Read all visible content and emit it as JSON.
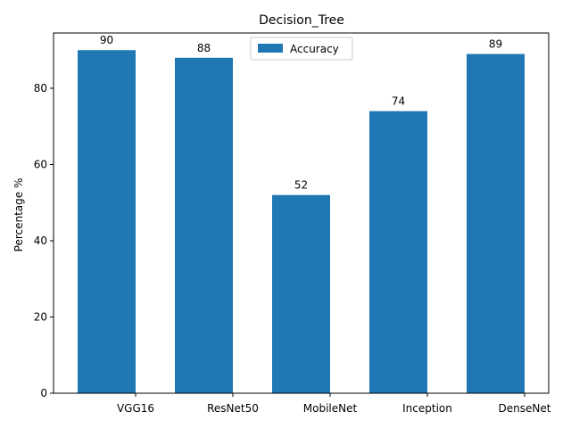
{
  "chart_data": {
    "type": "bar",
    "title": "Decision_Tree",
    "xlabel": "",
    "ylabel": "Percentage %",
    "categories": [
      "VGG16",
      "ResNet50",
      "MobileNet",
      "Inception",
      "DenseNet"
    ],
    "series": [
      {
        "name": "Accuracy",
        "values": [
          90,
          88,
          52,
          74,
          89
        ],
        "color": "#1f77b4"
      }
    ],
    "data_labels": [
      "90",
      "88",
      "52",
      "74",
      "89"
    ],
    "ylim": [
      0,
      94.5
    ],
    "yticks": [
      0,
      20,
      40,
      60,
      80
    ],
    "grid": false,
    "legend": {
      "placement": "upper center",
      "entries": [
        "Accuracy"
      ]
    }
  }
}
